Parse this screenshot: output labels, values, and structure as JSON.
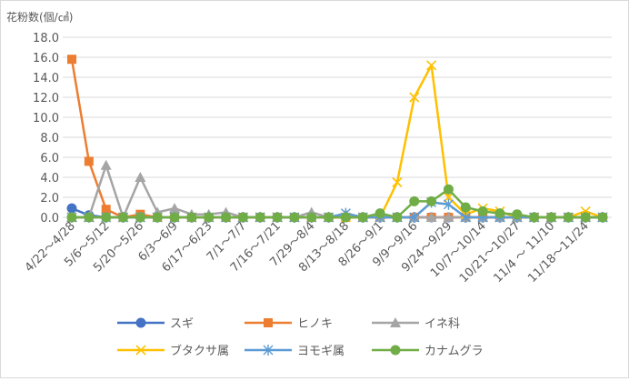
{
  "chart_data": {
    "type": "line",
    "title": "",
    "ylabel": "花粉数(個/㎠)",
    "xlabel": "",
    "ylim": [
      0,
      18
    ],
    "yticks": [
      "0.0",
      "2.0",
      "4.0",
      "6.0",
      "8.0",
      "10.0",
      "12.0",
      "14.0",
      "16.0",
      "18.0"
    ],
    "grid": "horizontal",
    "legend_position": "bottom",
    "categories": [
      "4/22～4/28",
      "4/29～5/5",
      "5/6～5/12",
      "5/13～5/19",
      "5/20～5/26",
      "5/27～6/2",
      "6/3～6/9",
      "6/10～6/16",
      "6/17～6/23",
      "6/24～6/30",
      "7/1～7/7",
      "7/8～7/15",
      "7/16～7/21",
      "7/22～7/28",
      "7/29～8/4",
      "8/5～8/12",
      "8/13～8/18",
      "8/19～8/25",
      "8/26～9/1",
      "9/2～9/8",
      "9/9～9/16",
      "9/17～9/23",
      "9/24～9/29",
      "9/30～10/6",
      "10/7～10/14",
      "10/15～10/20",
      "10/21～10/27",
      "10/28～11/3",
      "11/4 ～ 11/10",
      "11/11～11/17",
      "11/18～11/24",
      "11/25～12/1"
    ],
    "visible_tick_indices": [
      0,
      2,
      4,
      6,
      8,
      10,
      12,
      14,
      16,
      18,
      20,
      22,
      24,
      26,
      28,
      30
    ],
    "series": [
      {
        "name": "スギ",
        "color": "#4472c4",
        "marker": "circle",
        "values": [
          0.9,
          0.2,
          0,
          0,
          0,
          0,
          0,
          0,
          0,
          0,
          0,
          0,
          0,
          0,
          0,
          0,
          0,
          0,
          0,
          0,
          0,
          0,
          0,
          0,
          0,
          0,
          0,
          0,
          0,
          0,
          0,
          0
        ]
      },
      {
        "name": "ヒノキ",
        "color": "#ed7d31",
        "marker": "square",
        "values": [
          15.8,
          5.6,
          0.8,
          0,
          0.3,
          0,
          0,
          0,
          0,
          0,
          0,
          0,
          0,
          0,
          0,
          0,
          0,
          0,
          0,
          0,
          0,
          0,
          0,
          0,
          0,
          0,
          0,
          0,
          0,
          0,
          0,
          0
        ]
      },
      {
        "name": "イネ科",
        "color": "#a5a5a5",
        "marker": "triangle",
        "values": [
          0,
          0,
          5.2,
          0,
          4.0,
          0.5,
          0.9,
          0.3,
          0.3,
          0.5,
          0,
          0,
          0,
          0,
          0.5,
          0,
          0.3,
          0,
          0,
          0,
          0,
          0,
          0,
          0,
          0,
          0,
          0,
          0,
          0,
          0,
          0,
          0
        ]
      },
      {
        "name": "ブタクサ属",
        "color": "#ffc000",
        "marker": "x",
        "values": [
          0,
          0,
          0,
          0,
          0,
          0,
          0,
          0,
          0,
          0,
          0,
          0,
          0,
          0,
          0,
          0,
          0,
          0,
          0,
          3.5,
          12.0,
          15.2,
          2.0,
          0.3,
          0.9,
          0.6,
          0,
          0,
          0,
          0,
          0.6,
          0
        ]
      },
      {
        "name": "ヨモギ属",
        "color": "#5b9bd5",
        "marker": "star",
        "values": [
          0,
          0,
          0,
          0,
          0,
          0,
          0,
          0,
          0,
          0,
          0,
          0,
          0,
          0,
          0,
          0,
          0.4,
          0,
          0,
          0,
          0,
          1.5,
          1.3,
          0,
          0,
          0,
          0,
          0,
          0,
          0,
          0,
          0
        ]
      },
      {
        "name": "カナムグラ",
        "color": "#70ad47",
        "marker": "circle",
        "values": [
          0,
          0,
          0,
          0,
          0,
          0,
          0,
          0,
          0,
          0,
          0,
          0,
          0,
          0,
          0,
          0,
          0,
          0,
          0.4,
          0,
          1.6,
          1.6,
          2.8,
          1.0,
          0.6,
          0.4,
          0.3,
          0,
          0,
          0,
          0,
          0
        ]
      }
    ]
  }
}
